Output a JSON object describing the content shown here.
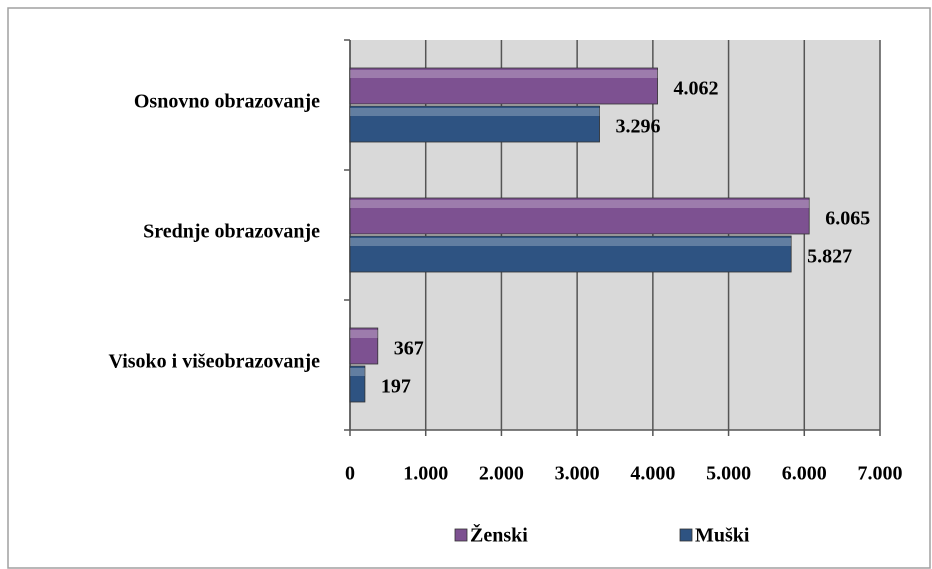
{
  "chart_data": {
    "type": "barh",
    "categories": [
      "Osnovno obrazovanje",
      "Srednje obrazovanje",
      "Visoko i višeobrazovanje"
    ],
    "series": [
      {
        "name": "Ženski",
        "color": "#7d5191",
        "values": [
          4062,
          6065,
          367
        ],
        "value_labels": [
          "4.062",
          "6.065",
          "367"
        ]
      },
      {
        "name": "Muški",
        "color": "#2e5382",
        "values": [
          3296,
          5827,
          197
        ],
        "value_labels": [
          "3.296",
          "5.827",
          "197"
        ]
      }
    ],
    "xlim": [
      0,
      7000
    ],
    "xticks": [
      0,
      {
        "value": 1000,
        "label": "1.000"
      },
      {
        "value": 2000,
        "label": "2.000"
      },
      {
        "value": 3000,
        "label": "3.000"
      },
      {
        "value": 4000,
        "label": "4.000"
      },
      {
        "value": 5000,
        "label": "5.000"
      },
      {
        "value": 6000,
        "label": "6.000"
      },
      {
        "value": 7000,
        "label": "7.000"
      }
    ],
    "grid": true,
    "legend": "bottom"
  }
}
